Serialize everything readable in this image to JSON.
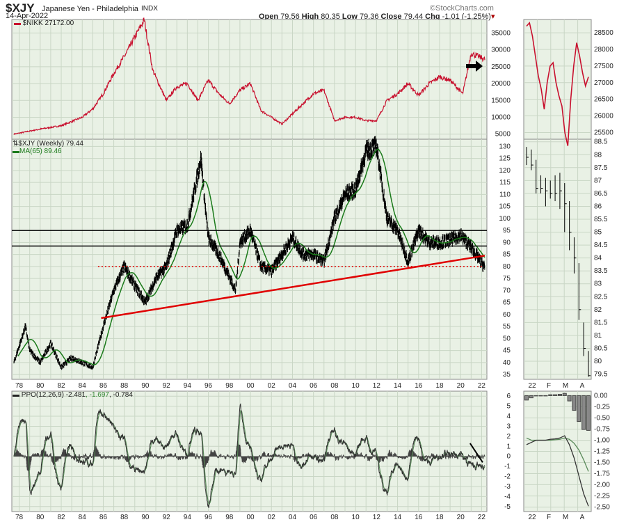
{
  "header": {
    "symbol": "$XJY",
    "name": "Japanese Yen - Philadelphia",
    "exchange": "INDX",
    "date": "14-Apr-2022",
    "watermark": "©StockCharts.com",
    "open_label": "Open",
    "open": "79.56",
    "high_label": "High",
    "high": "80.35",
    "low_label": "Low",
    "low": "79.36",
    "close_label": "Close",
    "close": "79.44",
    "chg_label": "Chg",
    "chg": "-1.01 (-1.25%)"
  },
  "colors": {
    "panel": "#e9f1e5",
    "grid": "#c9d6c5",
    "nikkei": "#c8102e",
    "price": "#000000",
    "ma": "#1a7a1a",
    "ppo": "#333333",
    "signal": "#5a8a5a",
    "trend": "#e00000"
  },
  "chart_data": [
    {
      "type": "line",
      "title": "$NIKK 27172.00",
      "legend": "$NIKK 27172.00",
      "ylim": [
        3500,
        39000
      ],
      "yticks": [
        5000,
        10000,
        15000,
        20000,
        25000,
        30000,
        35000
      ],
      "x": [
        1977.5,
        1980,
        1982,
        1984,
        1985,
        1986,
        1987,
        1988,
        1989.9,
        1990.7,
        1992,
        1993,
        1994,
        1995,
        1996,
        1997,
        1998,
        1999,
        2000,
        2001,
        2002,
        2003,
        2004,
        2005,
        2006,
        2007,
        2008,
        2009,
        2010,
        2011,
        2012,
        2013,
        2014,
        2015,
        2016,
        2017,
        2018,
        2019,
        2020.2,
        2020.8,
        2021,
        2022.3
      ],
      "y": [
        5000,
        6500,
        7500,
        10000,
        12500,
        17000,
        23000,
        28000,
        38900,
        24000,
        15000,
        19000,
        20000,
        15000,
        21000,
        17000,
        14000,
        18000,
        20000,
        12000,
        10000,
        8000,
        11000,
        14000,
        17000,
        18000,
        9000,
        10000,
        10000,
        9000,
        9000,
        15000,
        17000,
        20000,
        16500,
        20000,
        22000,
        21000,
        17000,
        26000,
        29000,
        27172
      ]
    },
    {
      "type": "line",
      "title": "$XJY (Weekly) 79.44",
      "legend": [
        "$XJY (Weekly) 79.44",
        "MA(65) 89.46"
      ],
      "ylim": [
        33,
        133
      ],
      "yticks": [
        35,
        40,
        45,
        50,
        55,
        60,
        65,
        70,
        75,
        80,
        85,
        90,
        95,
        100,
        105,
        110,
        115,
        120,
        125,
        130
      ],
      "x": [
        1977.5,
        1978.6,
        1979,
        1980,
        1981,
        1982,
        1983,
        1984,
        1985,
        1986,
        1987,
        1988,
        1989,
        1990,
        1991,
        1992,
        1993,
        1994,
        1995.3,
        1995.8,
        1996,
        1997,
        1998.6,
        1999,
        2000,
        2001,
        2002,
        2003,
        2004,
        2005,
        2006,
        2007,
        2008,
        2009,
        2010,
        2011,
        2012,
        2013,
        2014,
        2015,
        2016,
        2017,
        2018,
        2019,
        2020,
        2021,
        2022.3
      ],
      "y": [
        40,
        55,
        45,
        40,
        48,
        38,
        42,
        40,
        38,
        55,
        70,
        80,
        72,
        65,
        75,
        80,
        95,
        97,
        125,
        100,
        92,
        85,
        70,
        90,
        95,
        80,
        78,
        85,
        92,
        85,
        85,
        82,
        100,
        110,
        112,
        128,
        130,
        100,
        95,
        82,
        95,
        90,
        90,
        91,
        93,
        88,
        79.44
      ],
      "hlines": [
        95,
        88.5
      ],
      "dotted_level": 80,
      "trendline": {
        "x": [
          1985.8,
          2022.3
        ],
        "y": [
          58.5,
          84.5
        ]
      }
    },
    {
      "type": "line",
      "title": "PPO(12,26,9)",
      "legend": [
        "PPO(12,26,9) -2.481",
        ", -1.697",
        ", -0.784"
      ],
      "ylim": [
        -5.5,
        6.5
      ],
      "yticks": [
        6,
        5,
        4,
        3,
        2,
        1,
        0,
        -1,
        -2,
        -3,
        -4,
        -5
      ]
    }
  ],
  "xaxis": {
    "labels": [
      "78",
      "80",
      "82",
      "84",
      "86",
      "88",
      "90",
      "92",
      "94",
      "96",
      "98",
      "00",
      "02",
      "04",
      "06",
      "08",
      "10",
      "12",
      "14",
      "16",
      "18",
      "20",
      "22"
    ]
  },
  "mini": {
    "xlabels": [
      "22",
      "F",
      "M",
      "A"
    ],
    "nikkei": {
      "yticks": [
        25500,
        26000,
        26500,
        27000,
        27500,
        28000,
        28500
      ],
      "ylim": [
        25300,
        28900
      ],
      "y": [
        28700,
        28800,
        28400,
        27800,
        27200,
        26800,
        26200,
        27000,
        27500,
        27600,
        27000,
        26600,
        26300,
        25500,
        25100,
        26500,
        27500,
        28200,
        27800,
        27300,
        26900,
        27172
      ]
    },
    "xjy": {
      "yticks": [
        79.5,
        80.0,
        80.5,
        81.0,
        81.5,
        82.0,
        82.5,
        83.0,
        83.5,
        84.0,
        84.5,
        85.0,
        85.5,
        86.0,
        86.5,
        87.0,
        87.5,
        88.0,
        88.5
      ],
      "ylim": [
        79.3,
        88.6
      ],
      "bars": [
        [
          88.3,
          87.6,
          87.9
        ],
        [
          88.2,
          87.4,
          87.6
        ],
        [
          87.8,
          86.5,
          86.7
        ],
        [
          87.2,
          86.5,
          86.7
        ],
        [
          87.1,
          86.0,
          86.6
        ],
        [
          87.0,
          86.3,
          86.5
        ],
        [
          87.2,
          86.2,
          86.5
        ],
        [
          87.3,
          85.9,
          86.6
        ],
        [
          86.9,
          85.0,
          86.1
        ],
        [
          86.2,
          84.3,
          85.0
        ],
        [
          84.8,
          83.4,
          84.0
        ],
        [
          83.8,
          81.6,
          82.0
        ],
        [
          81.5,
          80.2,
          80.5
        ],
        [
          80.4,
          79.4,
          79.44
        ]
      ]
    },
    "ppo": {
      "yticks": [
        "0.00",
        "-0.25",
        "-0.50",
        "-0.75",
        "-1.00",
        "-1.25",
        "-1.50",
        "-1.75",
        "-2.00",
        "-2.25",
        "-2.50"
      ],
      "ylim": [
        -2.6,
        0.1
      ],
      "ppo": [
        -1.1,
        -1.05,
        -1.0,
        -1.0,
        -1.0,
        -0.98,
        -0.97,
        -0.95,
        -0.9,
        -1.1,
        -1.4,
        -1.8,
        -2.2,
        -2.48
      ],
      "signal": [
        -0.95,
        -1.0,
        -1.0,
        -1.0,
        -1.0,
        -1.0,
        -0.99,
        -0.98,
        -0.95,
        -0.98,
        -1.07,
        -1.22,
        -1.44,
        -1.7
      ],
      "hist": [
        -0.1,
        -0.05,
        0,
        0,
        0,
        0.02,
        0.02,
        0.03,
        0.05,
        -0.12,
        -0.33,
        -0.58,
        -0.76,
        -0.78
      ]
    }
  }
}
